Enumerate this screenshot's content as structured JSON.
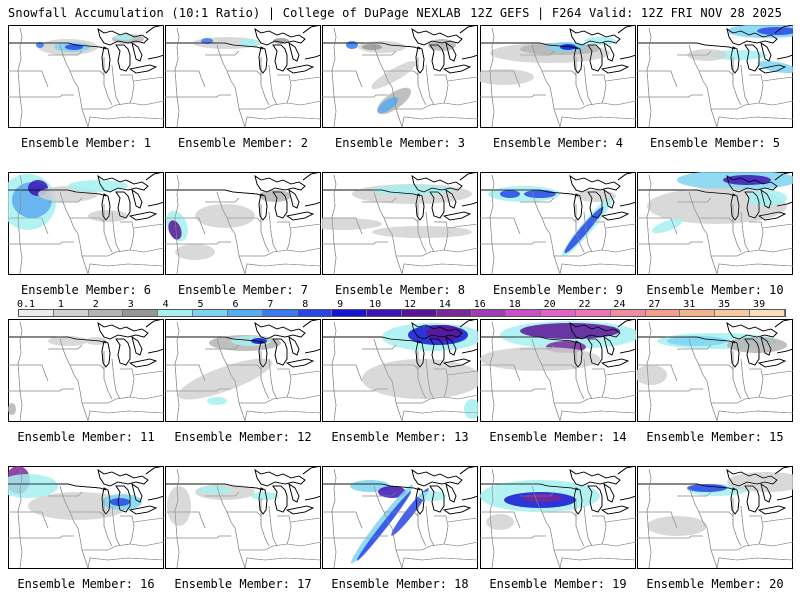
{
  "header": {
    "title_left": "Snowfall Accumulation (10:1 Ratio) | College of DuPage NEXLAB",
    "title_right": "12Z GEFS | F264 Valid: 12Z FRI NOV 28 2025"
  },
  "panels": [
    {
      "caption": "Ensemble Member: 1"
    },
    {
      "caption": "Ensemble Member: 2"
    },
    {
      "caption": "Ensemble Member: 3"
    },
    {
      "caption": "Ensemble Member: 4"
    },
    {
      "caption": "Ensemble Member: 5"
    },
    {
      "caption": "Ensemble Member: 6"
    },
    {
      "caption": "Ensemble Member: 7"
    },
    {
      "caption": "Ensemble Member: 8"
    },
    {
      "caption": "Ensemble Member: 9"
    },
    {
      "caption": "Ensemble Member: 10"
    },
    {
      "caption": "Ensemble Member: 11"
    },
    {
      "caption": "Ensemble Member: 12"
    },
    {
      "caption": "Ensemble Member: 13"
    },
    {
      "caption": "Ensemble Member: 14"
    },
    {
      "caption": "Ensemble Member: 15"
    },
    {
      "caption": "Ensemble Member: 16"
    },
    {
      "caption": "Ensemble Member: 17"
    },
    {
      "caption": "Ensemble Member: 18"
    },
    {
      "caption": "Ensemble Member: 19"
    },
    {
      "caption": "Ensemble Member: 20"
    }
  ],
  "colorbar": {
    "labels": [
      "0.1",
      "1",
      "2",
      "3",
      "4",
      "5",
      "6",
      "7",
      "8",
      "9",
      "10",
      "12",
      "14",
      "16",
      "18",
      "20",
      "22",
      "24",
      "27",
      "31",
      "35",
      "39"
    ],
    "colors": [
      "#ececec",
      "#d2d2d2",
      "#b4b4b4",
      "#969696",
      "#a6f0f0",
      "#7ed4f0",
      "#5aaaf0",
      "#3c78f0",
      "#2846e6",
      "#1414d2",
      "#3c14b4",
      "#5a1496",
      "#7a2896",
      "#a03cb4",
      "#c850c8",
      "#e064c8",
      "#e878b4",
      "#f08ca0",
      "#f0a08c",
      "#f0b48c",
      "#f5c8a0",
      "#fadcbe"
    ]
  }
}
